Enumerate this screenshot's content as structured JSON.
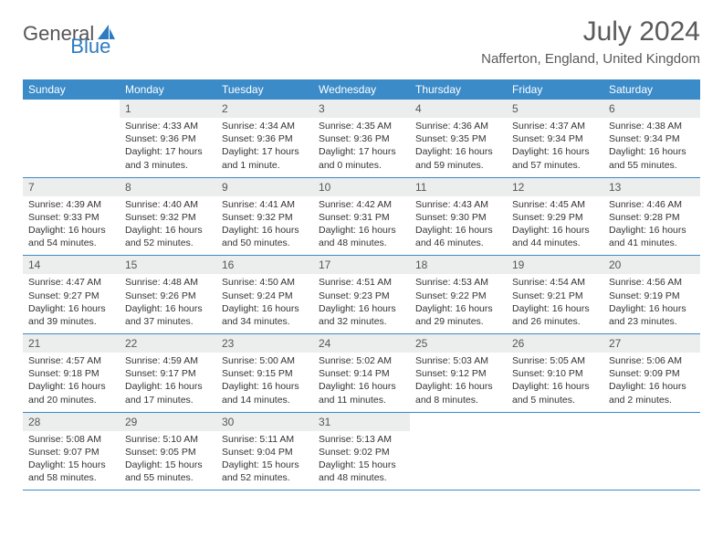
{
  "brand": {
    "part1": "General",
    "part2": "Blue"
  },
  "title": "July 2024",
  "location": "Nafferton, England, United Kingdom",
  "colors": {
    "header_bg": "#3b8bc9",
    "header_fg": "#ffffff",
    "daynum_bg": "#eceeee",
    "rule": "#3b8bc9",
    "brand_blue": "#2d7bc0",
    "text": "#333333"
  },
  "weekdays": [
    "Sunday",
    "Monday",
    "Tuesday",
    "Wednesday",
    "Thursday",
    "Friday",
    "Saturday"
  ],
  "weeks": [
    [
      null,
      {
        "n": "1",
        "sr": "4:33 AM",
        "ss": "9:36 PM",
        "dl": "17 hours and 3 minutes."
      },
      {
        "n": "2",
        "sr": "4:34 AM",
        "ss": "9:36 PM",
        "dl": "17 hours and 1 minute."
      },
      {
        "n": "3",
        "sr": "4:35 AM",
        "ss": "9:36 PM",
        "dl": "17 hours and 0 minutes."
      },
      {
        "n": "4",
        "sr": "4:36 AM",
        "ss": "9:35 PM",
        "dl": "16 hours and 59 minutes."
      },
      {
        "n": "5",
        "sr": "4:37 AM",
        "ss": "9:34 PM",
        "dl": "16 hours and 57 minutes."
      },
      {
        "n": "6",
        "sr": "4:38 AM",
        "ss": "9:34 PM",
        "dl": "16 hours and 55 minutes."
      }
    ],
    [
      {
        "n": "7",
        "sr": "4:39 AM",
        "ss": "9:33 PM",
        "dl": "16 hours and 54 minutes."
      },
      {
        "n": "8",
        "sr": "4:40 AM",
        "ss": "9:32 PM",
        "dl": "16 hours and 52 minutes."
      },
      {
        "n": "9",
        "sr": "4:41 AM",
        "ss": "9:32 PM",
        "dl": "16 hours and 50 minutes."
      },
      {
        "n": "10",
        "sr": "4:42 AM",
        "ss": "9:31 PM",
        "dl": "16 hours and 48 minutes."
      },
      {
        "n": "11",
        "sr": "4:43 AM",
        "ss": "9:30 PM",
        "dl": "16 hours and 46 minutes."
      },
      {
        "n": "12",
        "sr": "4:45 AM",
        "ss": "9:29 PM",
        "dl": "16 hours and 44 minutes."
      },
      {
        "n": "13",
        "sr": "4:46 AM",
        "ss": "9:28 PM",
        "dl": "16 hours and 41 minutes."
      }
    ],
    [
      {
        "n": "14",
        "sr": "4:47 AM",
        "ss": "9:27 PM",
        "dl": "16 hours and 39 minutes."
      },
      {
        "n": "15",
        "sr": "4:48 AM",
        "ss": "9:26 PM",
        "dl": "16 hours and 37 minutes."
      },
      {
        "n": "16",
        "sr": "4:50 AM",
        "ss": "9:24 PM",
        "dl": "16 hours and 34 minutes."
      },
      {
        "n": "17",
        "sr": "4:51 AM",
        "ss": "9:23 PM",
        "dl": "16 hours and 32 minutes."
      },
      {
        "n": "18",
        "sr": "4:53 AM",
        "ss": "9:22 PM",
        "dl": "16 hours and 29 minutes."
      },
      {
        "n": "19",
        "sr": "4:54 AM",
        "ss": "9:21 PM",
        "dl": "16 hours and 26 minutes."
      },
      {
        "n": "20",
        "sr": "4:56 AM",
        "ss": "9:19 PM",
        "dl": "16 hours and 23 minutes."
      }
    ],
    [
      {
        "n": "21",
        "sr": "4:57 AM",
        "ss": "9:18 PM",
        "dl": "16 hours and 20 minutes."
      },
      {
        "n": "22",
        "sr": "4:59 AM",
        "ss": "9:17 PM",
        "dl": "16 hours and 17 minutes."
      },
      {
        "n": "23",
        "sr": "5:00 AM",
        "ss": "9:15 PM",
        "dl": "16 hours and 14 minutes."
      },
      {
        "n": "24",
        "sr": "5:02 AM",
        "ss": "9:14 PM",
        "dl": "16 hours and 11 minutes."
      },
      {
        "n": "25",
        "sr": "5:03 AM",
        "ss": "9:12 PM",
        "dl": "16 hours and 8 minutes."
      },
      {
        "n": "26",
        "sr": "5:05 AM",
        "ss": "9:10 PM",
        "dl": "16 hours and 5 minutes."
      },
      {
        "n": "27",
        "sr": "5:06 AM",
        "ss": "9:09 PM",
        "dl": "16 hours and 2 minutes."
      }
    ],
    [
      {
        "n": "28",
        "sr": "5:08 AM",
        "ss": "9:07 PM",
        "dl": "15 hours and 58 minutes."
      },
      {
        "n": "29",
        "sr": "5:10 AM",
        "ss": "9:05 PM",
        "dl": "15 hours and 55 minutes."
      },
      {
        "n": "30",
        "sr": "5:11 AM",
        "ss": "9:04 PM",
        "dl": "15 hours and 52 minutes."
      },
      {
        "n": "31",
        "sr": "5:13 AM",
        "ss": "9:02 PM",
        "dl": "15 hours and 48 minutes."
      },
      null,
      null,
      null
    ]
  ]
}
